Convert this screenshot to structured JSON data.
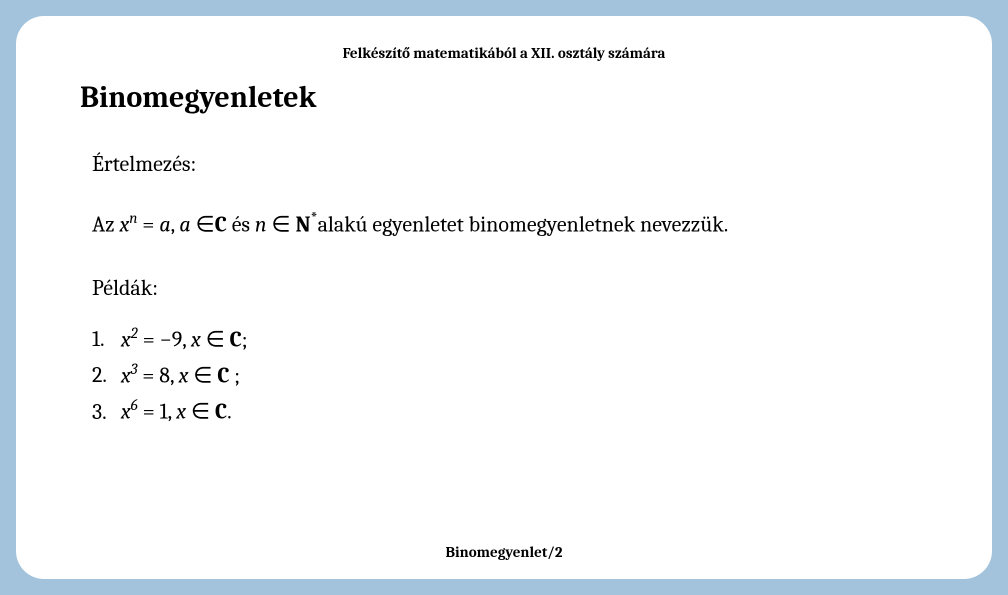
{
  "colors": {
    "page_bg": "#a2c3db",
    "slide_bg": "#ffffff",
    "text": "#000000"
  },
  "header": "Felkészítő matematikából a XII. osztály számára",
  "title": "Binomegyenletek",
  "section_label": "Értelmezés:",
  "definition": {
    "prefix": "Az  ",
    "var": "x",
    "exp": "n",
    "eq": " = ",
    "a1": "a",
    "comma": ", ",
    "a2": "a",
    "in1": " ∈",
    "setC": "C",
    "and": " és ",
    "n": "n",
    "in2": " ∈ ",
    "setN": "N",
    "star": "*",
    "suffix": "alakú egyenletet  binomegyenletnek nevezzük."
  },
  "examples_label": "Példák:",
  "examples": [
    {
      "n": "1.",
      "var": "x",
      "exp": "2",
      "eq": " = −9,  ",
      "xv": "x",
      "in": " ∈ ",
      "set": "C",
      "end": ";"
    },
    {
      "n": "2.",
      "var": "x",
      "exp": "3",
      "eq": " = 8,  ",
      "xv": "x",
      "in": " ∈ ",
      "set": "C",
      "end": " ;"
    },
    {
      "n": "3.",
      "var": "x",
      "exp": "6",
      "eq": " = 1,  ",
      "xv": "x",
      "in": " ∈ ",
      "set": "C",
      "end": "."
    }
  ],
  "footer": "Binomegyenlet/2"
}
